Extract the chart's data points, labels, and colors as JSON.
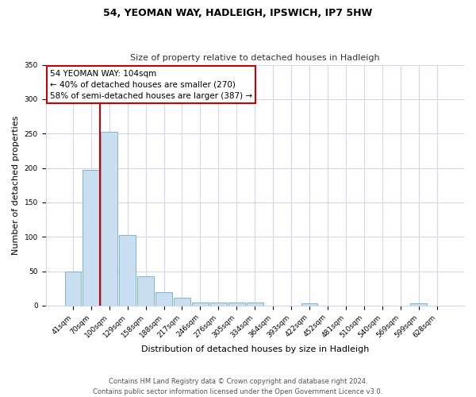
{
  "title": "54, YEOMAN WAY, HADLEIGH, IPSWICH, IP7 5HW",
  "subtitle": "Size of property relative to detached houses in Hadleigh",
  "xlabel": "Distribution of detached houses by size in Hadleigh",
  "ylabel": "Number of detached properties",
  "bin_labels": [
    "41sqm",
    "70sqm",
    "100sqm",
    "129sqm",
    "158sqm",
    "188sqm",
    "217sqm",
    "246sqm",
    "276sqm",
    "305sqm",
    "334sqm",
    "364sqm",
    "393sqm",
    "422sqm",
    "452sqm",
    "481sqm",
    "510sqm",
    "540sqm",
    "569sqm",
    "599sqm",
    "628sqm"
  ],
  "bar_values": [
    50,
    197,
    253,
    102,
    43,
    19,
    11,
    4,
    4,
    4,
    4,
    0,
    0,
    3,
    0,
    0,
    0,
    0,
    0,
    3,
    0
  ],
  "bar_color": "#c9dff0",
  "bar_edge_color": "#7fb3d3",
  "marker_index": 2,
  "marker_color": "#cc0000",
  "annotation_title": "54 YEOMAN WAY: 104sqm",
  "annotation_line1": "← 40% of detached houses are smaller (270)",
  "annotation_line2": "58% of semi-detached houses are larger (387) →",
  "annotation_box_color": "#ffffff",
  "annotation_box_edge": "#cc0000",
  "ylim": [
    0,
    350
  ],
  "yticks": [
    0,
    50,
    100,
    150,
    200,
    250,
    300,
    350
  ],
  "footer1": "Contains HM Land Registry data © Crown copyright and database right 2024.",
  "footer2": "Contains public sector information licensed under the Open Government Licence v3.0.",
  "bg_color": "#ffffff",
  "grid_color": "#d0d8e8",
  "title_fontsize": 9,
  "subtitle_fontsize": 8,
  "xlabel_fontsize": 8,
  "ylabel_fontsize": 8,
  "tick_fontsize": 6.5,
  "annotation_fontsize": 7.5,
  "footer_fontsize": 6
}
